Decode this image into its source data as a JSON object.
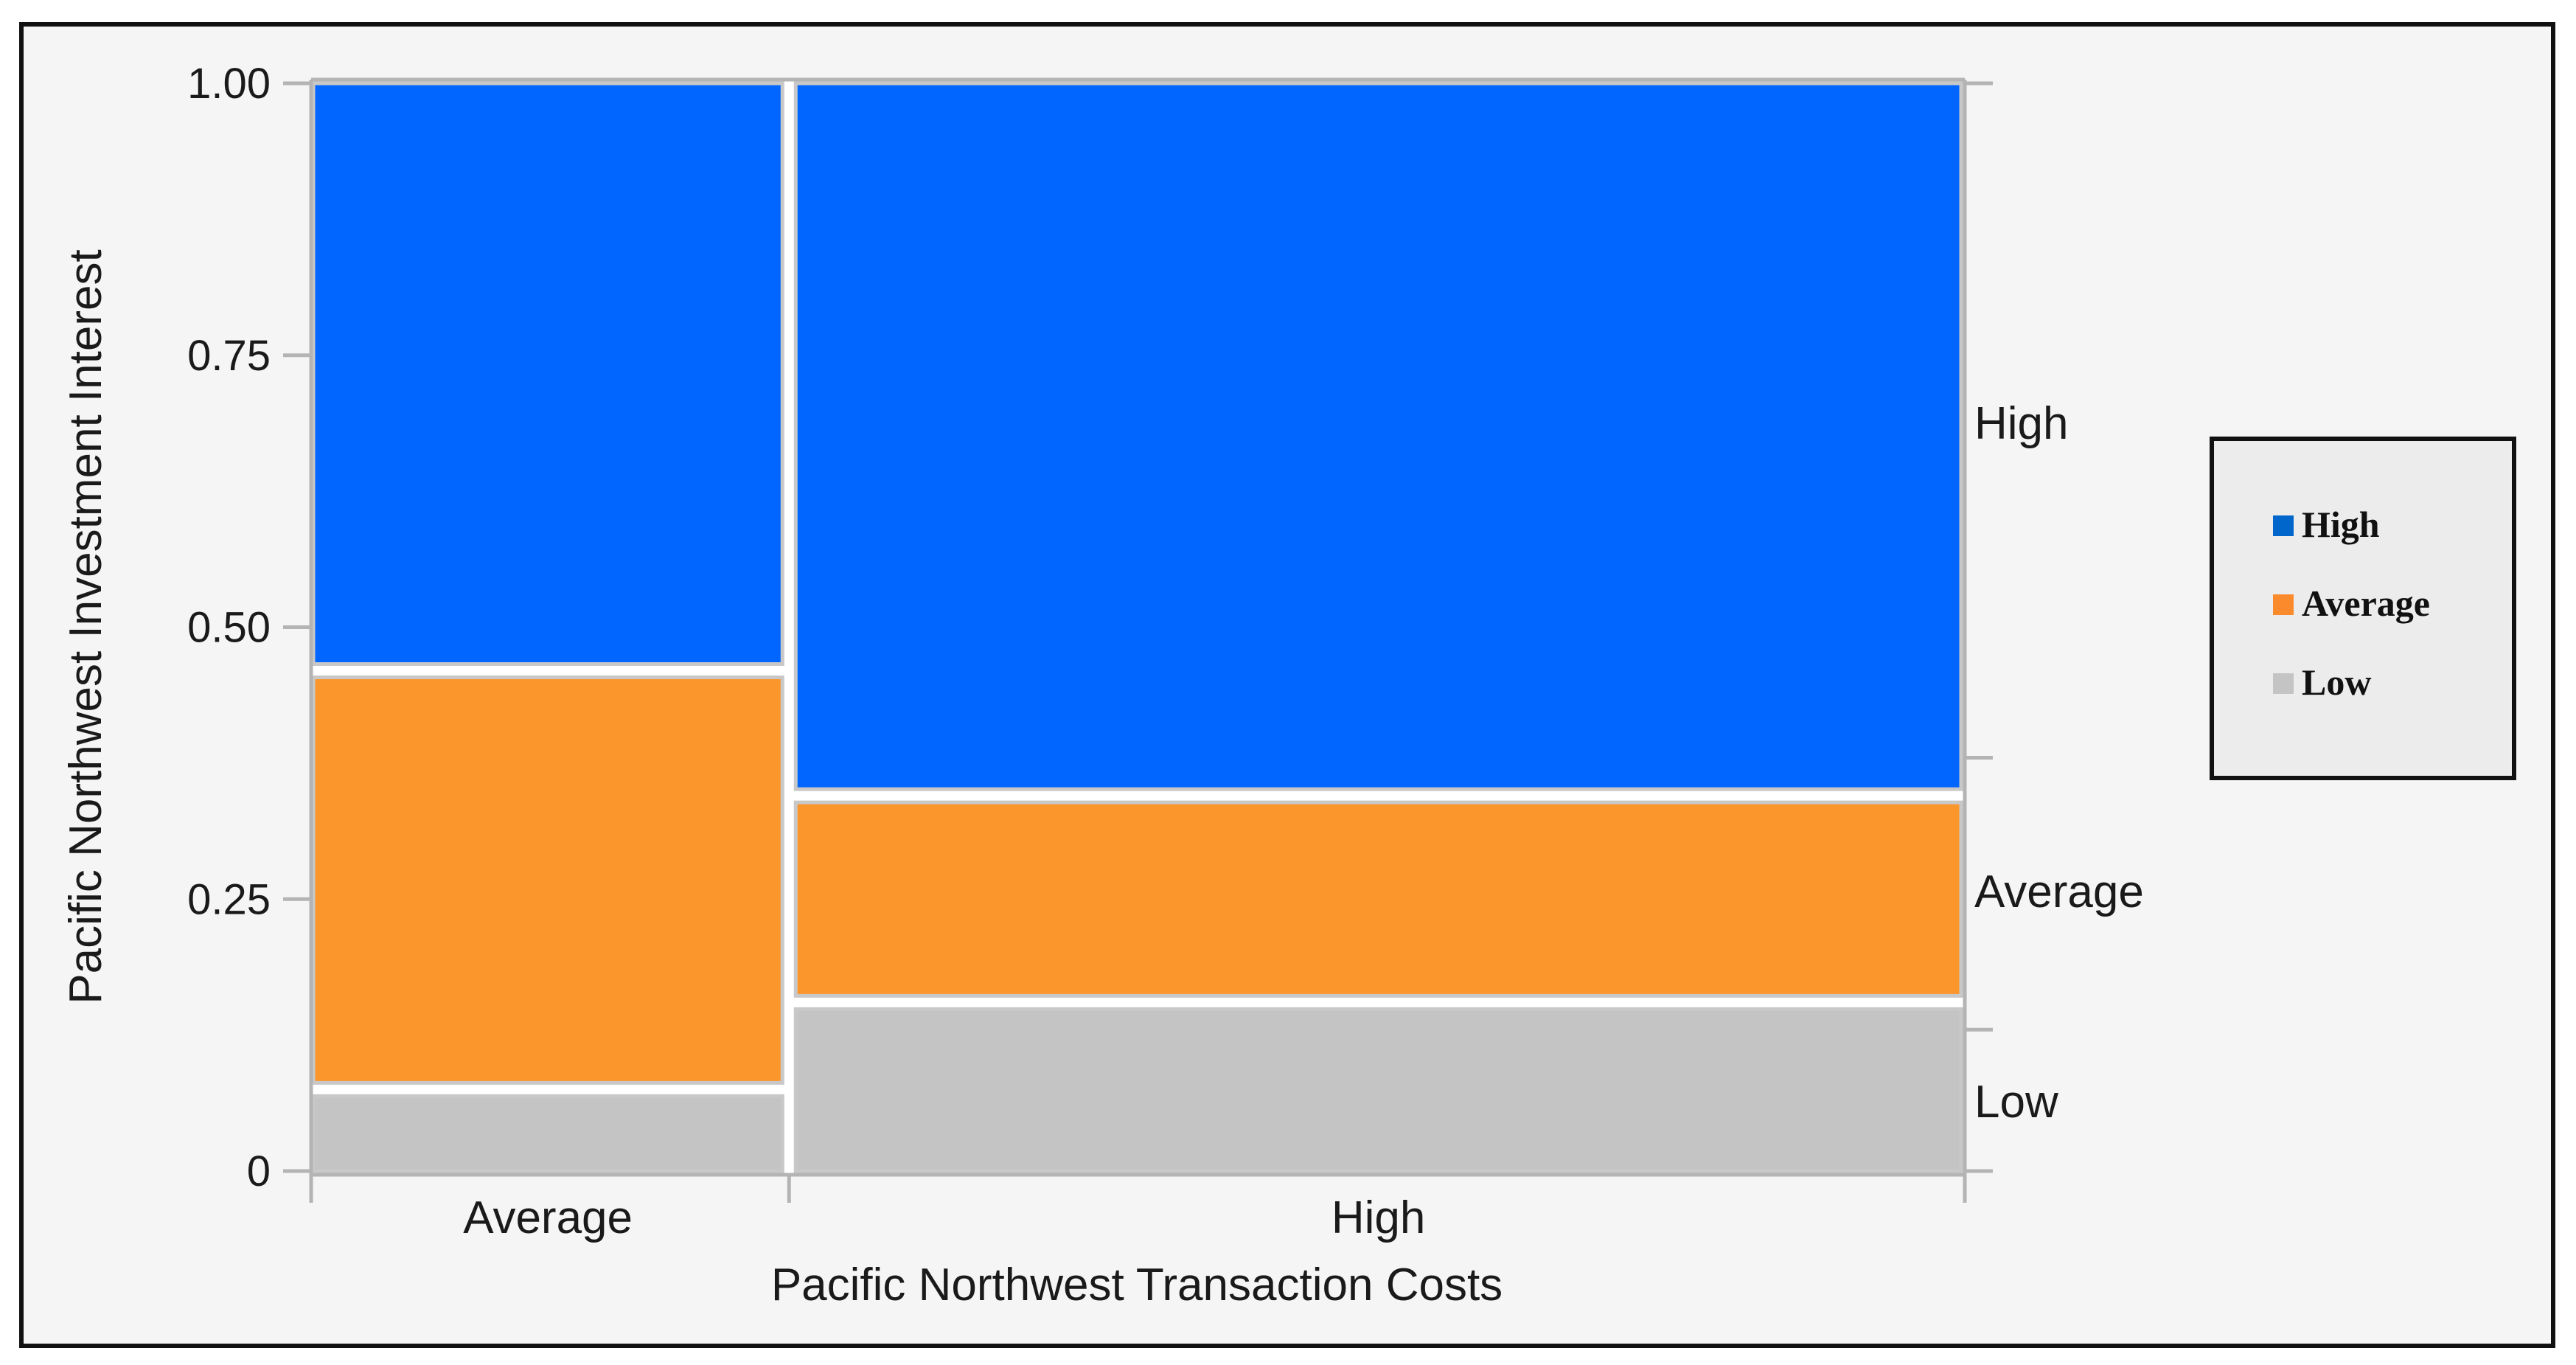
{
  "chart_data": {
    "type": "mosaic",
    "title": "",
    "xlabel": "Pacific Northwest Transaction Costs",
    "ylabel": "Pacific Northwest Investment Interest",
    "ylim": [
      0,
      1
    ],
    "yticks": [
      "0",
      "0.25",
      "0.50",
      "0.75",
      "1.00"
    ],
    "ytick_values": [
      0,
      0.25,
      0.5,
      0.75,
      1.0
    ],
    "categories": [
      "Average",
      "High"
    ],
    "column_share": [
      0.287,
      0.713
    ],
    "series": [
      {
        "name": "Low",
        "color": "#c4c4c4",
        "values": [
          0.075,
          0.155
        ]
      },
      {
        "name": "Average",
        "color": "#fb962c",
        "values": [
          0.385,
          0.19
        ]
      },
      {
        "name": "High",
        "color": "#0066ff",
        "values": [
          0.54,
          0.655
        ]
      }
    ],
    "right_axis_labels": [
      "High",
      "Average",
      "Low"
    ],
    "right_axis_boundaries": [
      0.38,
      0.13
    ],
    "legend": {
      "position": "right",
      "items": [
        {
          "label": "High",
          "color": "#0066cc"
        },
        {
          "label": "Average",
          "color": "#fb8a2c"
        },
        {
          "label": "Low",
          "color": "#c4c4c4"
        }
      ]
    },
    "grid": false
  }
}
